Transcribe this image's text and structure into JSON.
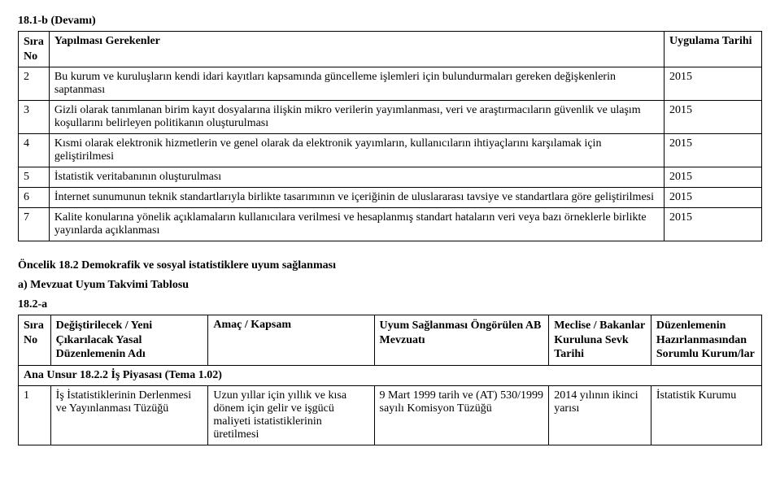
{
  "section1": {
    "code": "18.1-b (Devamı)",
    "headers": {
      "no": "Sıra No",
      "task": "Yapılması Gerekenler",
      "date": "Uygulama Tarihi"
    },
    "rows": [
      {
        "n": "2",
        "task": "Bu kurum ve kuruluşların kendi idari kayıtları kapsamında güncelleme işlemleri için bulundurmaları gereken değişkenlerin saptanması",
        "date": "2015"
      },
      {
        "n": "3",
        "task": "Gizli olarak tanımlanan birim kayıt dosyalarına ilişkin mikro verilerin yayımlanması, veri ve araştırmacıların güvenlik ve ulaşım koşullarını belirleyen politikanın oluşturulması",
        "date": "2015"
      },
      {
        "n": "4",
        "task": "Kısmi olarak elektronik hizmetlerin ve genel olarak da elektronik yayımların, kullanıcıların ihtiyaçlarını karşılamak için geliştirilmesi",
        "date": "2015"
      },
      {
        "n": "5",
        "task": "İstatistik veritabanının oluşturulması",
        "date": "2015"
      },
      {
        "n": "6",
        "task": "İnternet sunumunun teknik standartlarıyla birlikte tasarımının ve içeriğinin de uluslararası tavsiye ve standartlara göre geliştirilmesi",
        "date": "2015"
      },
      {
        "n": "7",
        "task": "Kalite konularına yönelik açıklamaların kullanıcılara verilmesi ve hesaplanmış standart hataların veri veya bazı örneklerle birlikte yayınlarda açıklanması",
        "date": "2015"
      }
    ]
  },
  "midHeadings": {
    "priority": "Öncelik 18.2 Demokrafik ve sosyal istatistiklere uyum sağlanması",
    "sub": "a) Mevzuat Uyum Takvimi Tablosu",
    "code": "18.2-a"
  },
  "section2": {
    "headers": {
      "no": "Sıra No",
      "col2": "Değiştirilecek / Yeni Çıkarılacak Yasal Düzenlemenin Adı",
      "col3": "Amaç / Kapsam",
      "col4": "Uyum Sağlanması Öngörülen AB Mevzuatı",
      "col5": "Meclise / Bakanlar Kuruluna Sevk Tarihi",
      "col6": "Düzenlemenin Hazırlanmasından Sorumlu Kurum/lar"
    },
    "anaRow": "Ana Unsur 18.2.2 İş Piyasası (Tema 1.02)",
    "row1": {
      "n": "1",
      "c2": "İş İstatistiklerinin Derlenmesi ve Yayınlanması Tüzüğü",
      "c3": "Uzun yıllar için yıllık ve kısa dönem için gelir ve işgücü maliyeti istatistiklerinin üretilmesi",
      "c4": "9 Mart 1999 tarih ve (AT) 530/1999 sayılı Komisyon Tüzüğü",
      "c5": "2014 yılının ikinci yarısı",
      "c6": "İstatistik Kurumu"
    }
  }
}
